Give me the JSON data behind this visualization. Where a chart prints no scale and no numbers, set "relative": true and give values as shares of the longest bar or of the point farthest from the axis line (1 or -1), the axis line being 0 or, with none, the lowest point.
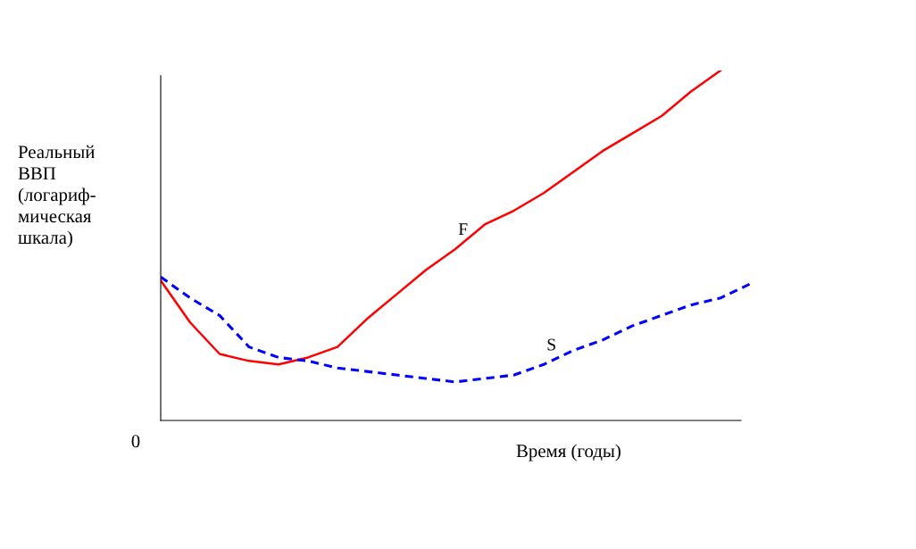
{
  "chart_data": {
    "type": "line",
    "relative": true,
    "categories": [
      null,
      null,
      null,
      null,
      null,
      null,
      null,
      null,
      null,
      null,
      null,
      null,
      null,
      null,
      null,
      null,
      null,
      null,
      null,
      null,
      null
    ],
    "xlabel": "Время (годы)",
    "ylabel": "Реальный\nВВП\n(логариф-\nмическая\nшкала)",
    "annotations": [
      "0"
    ],
    "legend": false,
    "series": [
      {
        "name": "F",
        "color": "#ff0000",
        "line_style": "solid",
        "values": [
          0.4,
          0.28,
          0.19,
          0.17,
          0.16,
          0.18,
          0.21,
          0.29,
          0.36,
          0.43,
          0.49,
          0.56,
          0.6,
          0.65,
          0.71,
          0.77,
          0.82,
          0.87,
          0.94,
          1.0,
          null
        ]
      },
      {
        "name": "S",
        "color": "#0000ff",
        "line_style": "dashed",
        "values": [
          0.41,
          0.35,
          0.3,
          0.21,
          0.18,
          0.17,
          0.15,
          0.14,
          0.13,
          0.12,
          0.11,
          0.12,
          0.13,
          0.16,
          0.2,
          0.23,
          0.27,
          0.3,
          0.33,
          0.35,
          0.39
        ]
      }
    ]
  }
}
